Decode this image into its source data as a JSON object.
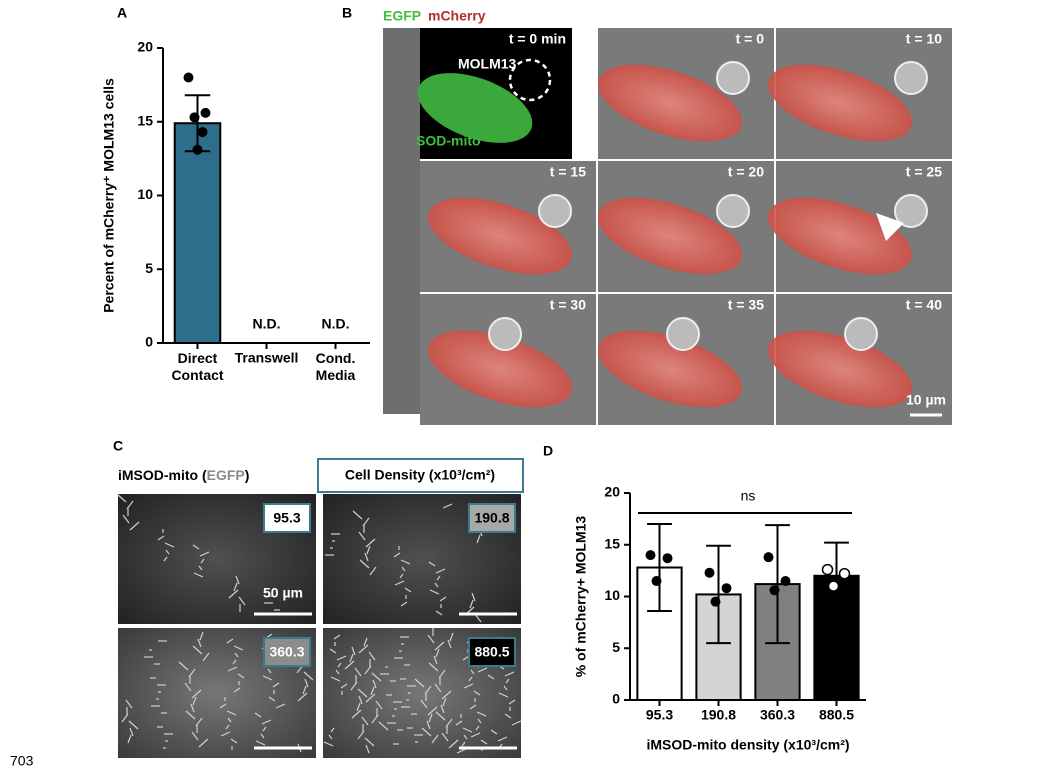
{
  "panel_labels": [
    "A",
    "B",
    "C",
    "D"
  ],
  "chart_data": [
    {
      "type": "bar",
      "ylabel": "Percent of mCherry⁺ MOLM13 cells",
      "categories": [
        "Direct\nContact",
        "Transwell",
        "Cond.\nMedia"
      ],
      "values": [
        14.9,
        null,
        null
      ],
      "value_labels": [
        null,
        "N.D.",
        "N.D."
      ],
      "errors": [
        1.9,
        null,
        null
      ],
      "points": [
        [
          18.0,
          15.6,
          15.3,
          14.3,
          13.1
        ],
        [],
        []
      ],
      "colors": [
        "#2f6d8c",
        "#2f6d8c",
        "#2f6d8c"
      ],
      "ylim": [
        0,
        20
      ],
      "yticks": [
        0,
        5,
        10,
        15,
        20
      ]
    },
    {
      "type": "bar",
      "ylabel": "% of mCherry+ MOLM13",
      "xlabel": "iMSOD-mito density (x10³/cm²)",
      "categories": [
        "95.3",
        "190.8",
        "360.3",
        "880.5"
      ],
      "values": [
        12.8,
        10.2,
        11.2,
        12.0
      ],
      "errors": [
        4.2,
        4.7,
        5.7,
        3.2
      ],
      "points": [
        [
          14.0,
          13.7,
          11.5
        ],
        [
          12.3,
          10.8,
          9.5
        ],
        [
          13.8,
          11.5,
          10.6
        ],
        [
          12.6,
          12.2,
          11.0
        ]
      ],
      "hollow_points": [
        false,
        false,
        false,
        true
      ],
      "colors": [
        "#ffffff",
        "#d4d4d4",
        "#808080",
        "#000000"
      ],
      "annotation": "ns",
      "ylim": [
        0,
        20
      ],
      "yticks": [
        0,
        5,
        10,
        15,
        20
      ]
    }
  ],
  "time_lapse": {
    "channel_labels": [
      "EGFP",
      "mCherry"
    ],
    "cell_label": "MOLM13",
    "donor_label": "SOD-mito",
    "frames": [
      "t = 0 min",
      "t = 0",
      "t = 10",
      "t = 15",
      "t = 20",
      "t = 25",
      "t = 30",
      "t = 35",
      "t = 40"
    ],
    "scale_bar": "10 µm"
  },
  "density_images": {
    "title": [
      "iMSOD-mito (",
      "EGFP",
      ")"
    ],
    "legend": "Cell Density (x10³/cm²)",
    "values": [
      "95.3",
      "190.8",
      "360.3",
      "880.5"
    ],
    "scale_bar": "50 µm"
  },
  "page_number": "703"
}
